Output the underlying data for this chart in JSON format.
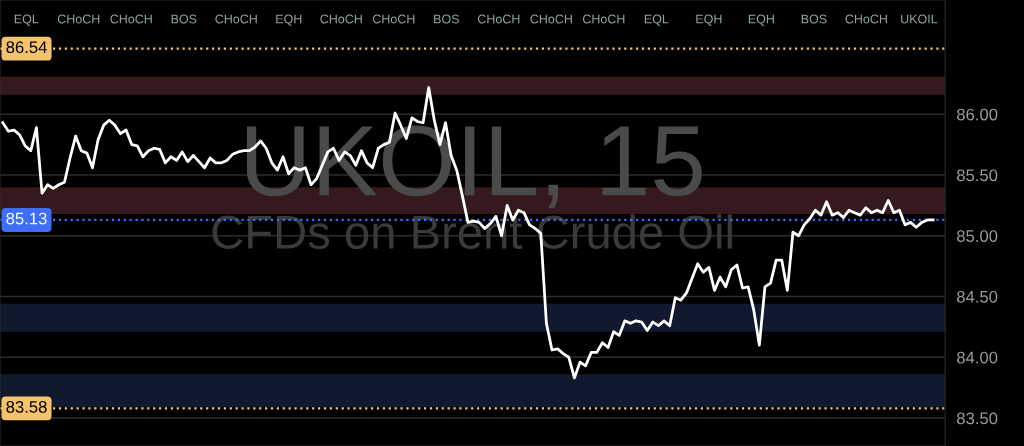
{
  "chart_data": {
    "type": "line",
    "title": "UKOIL, 15",
    "subtitle": "CFDs on Brent Crude Oil",
    "categories": [
      null,
      null,
      null,
      null,
      null,
      null,
      null,
      null,
      null,
      null,
      null,
      null,
      null,
      null,
      null,
      null,
      null,
      null,
      null,
      null,
      null,
      null,
      null,
      null,
      null,
      null,
      null,
      null,
      null,
      null,
      null,
      null,
      null,
      null,
      null,
      null,
      null,
      null,
      null,
      null,
      null,
      null,
      null,
      null,
      null,
      null,
      null,
      null,
      null,
      null,
      null,
      null,
      null,
      null,
      null,
      null,
      null,
      null,
      null,
      null,
      null,
      null,
      null,
      null,
      null,
      null,
      null,
      null,
      null,
      null,
      null,
      null,
      null,
      null,
      null,
      null,
      null,
      null,
      null,
      null,
      null,
      null,
      null,
      null,
      null,
      null,
      null,
      null,
      null,
      null,
      null,
      null,
      null,
      null,
      null,
      null,
      null,
      null,
      null,
      null,
      null,
      null,
      null,
      null,
      null,
      null,
      null,
      null,
      null,
      null,
      null,
      null,
      null,
      null,
      null,
      null,
      null,
      null,
      null,
      null,
      null,
      null,
      null,
      null,
      null,
      null,
      null,
      null,
      null,
      null,
      null,
      null,
      null,
      null,
      null,
      null,
      null,
      null,
      null,
      null,
      null,
      null,
      null,
      null,
      null,
      null,
      null,
      null,
      null,
      null,
      null,
      null,
      null,
      null,
      null,
      null,
      null,
      null,
      null,
      null,
      null,
      null,
      null,
      null,
      null,
      null,
      null
    ],
    "series": [
      {
        "color": "#ffffff",
        "values": [
          85.93,
          85.86,
          85.87,
          85.83,
          85.74,
          85.7,
          85.89,
          85.35,
          85.42,
          85.39,
          85.42,
          85.44,
          85.64,
          85.82,
          85.7,
          85.68,
          85.56,
          85.79,
          85.91,
          85.95,
          85.91,
          85.84,
          85.87,
          85.75,
          85.74,
          85.65,
          85.7,
          85.72,
          85.71,
          85.6,
          85.65,
          85.62,
          85.69,
          85.61,
          85.66,
          85.61,
          85.56,
          85.64,
          85.6,
          85.6,
          85.62,
          85.67,
          85.69,
          85.7,
          85.7,
          85.73,
          85.78,
          85.72,
          85.6,
          85.54,
          85.65,
          85.51,
          85.56,
          85.54,
          85.56,
          85.42,
          85.47,
          85.58,
          85.69,
          85.72,
          85.62,
          85.69,
          85.66,
          85.58,
          85.7,
          85.6,
          85.56,
          85.72,
          85.75,
          85.77,
          86.01,
          85.91,
          85.8,
          85.97,
          85.94,
          85.93,
          86.22,
          85.95,
          85.75,
          85.93,
          85.66,
          85.54,
          85.33,
          85.11,
          85.12,
          85.11,
          85.06,
          85.1,
          85.16,
          85.0,
          85.25,
          85.13,
          85.21,
          85.19,
          85.09,
          85.06,
          85.02,
          84.28,
          84.06,
          84.07,
          84.03,
          84.0,
          83.83,
          83.96,
          83.93,
          84.04,
          84.04,
          84.12,
          84.08,
          84.21,
          84.18,
          84.3,
          84.28,
          84.3,
          84.29,
          84.22,
          84.29,
          84.26,
          84.3,
          84.26,
          84.49,
          84.47,
          84.53,
          84.65,
          84.77,
          84.7,
          84.74,
          84.55,
          84.66,
          84.58,
          84.72,
          84.76,
          84.57,
          84.58,
          84.39,
          84.1,
          84.58,
          84.61,
          84.8,
          84.8,
          84.55,
          85.03,
          85.0,
          85.09,
          85.14,
          85.21,
          85.17,
          85.28,
          85.17,
          85.19,
          85.15,
          85.21,
          85.19,
          85.17,
          85.23,
          85.19,
          85.21,
          85.19,
          85.29,
          85.19,
          85.21,
          85.09,
          85.11,
          85.07,
          85.11,
          85.13,
          85.13
        ]
      }
    ],
    "ylim": [
      83.27,
      86.94
    ],
    "yticks": [
      {
        "value": 83.5,
        "label": "83.50"
      },
      {
        "value": 84.0,
        "label": "84.00"
      },
      {
        "value": 84.5,
        "label": "84.50"
      },
      {
        "value": 85.0,
        "label": "85.00"
      },
      {
        "value": 85.5,
        "label": "85.50"
      },
      {
        "value": 86.0,
        "label": "86.00"
      }
    ],
    "grid": "y",
    "line_style": "solid",
    "ref_lines": [
      {
        "axis": "y",
        "value": 86.54,
        "label": "86.54",
        "color": "#f5c36b",
        "line_style": "dotted"
      },
      {
        "axis": "y",
        "value": 85.13,
        "label": "85.13",
        "color": "#3d6ef5",
        "line_style": "dotted"
      },
      {
        "axis": "y",
        "value": 83.58,
        "label": "83.58",
        "color": "#f5c36b",
        "line_style": "dotted"
      }
    ],
    "bands": [
      {
        "axis": "y",
        "from": 83.59,
        "to": 83.86,
        "color": "#131c33"
      },
      {
        "axis": "y",
        "from": 84.21,
        "to": 84.44,
        "color": "#131c33"
      },
      {
        "axis": "y",
        "from": 85.18,
        "to": 85.4,
        "color": "#3b1c1f"
      },
      {
        "axis": "y",
        "from": 86.16,
        "to": 86.31,
        "color": "#3b1c1f"
      }
    ],
    "annotations": [
      "EQL",
      "CHoCH",
      "CHoCH",
      "BOS",
      "CHoCH",
      "EQH",
      "CHoCH",
      "CHoCH",
      "BOS",
      "CHoCH",
      "CHoCH",
      "CHoCH",
      "EQL",
      "EQH",
      "EQH",
      "BOS",
      "CHoCH",
      "UKOIL"
    ]
  }
}
